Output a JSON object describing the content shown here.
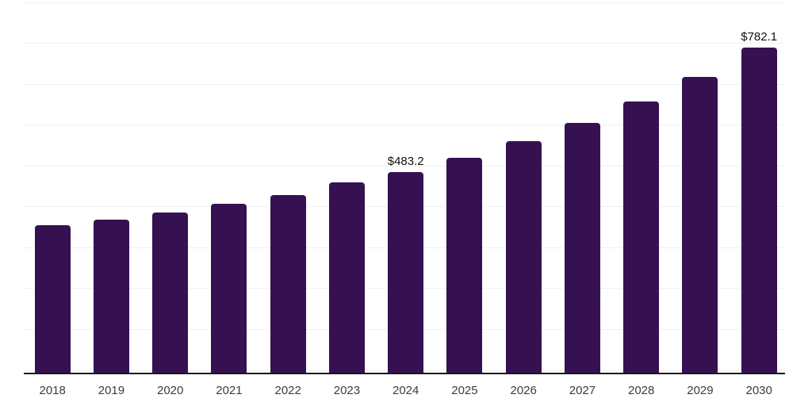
{
  "chart_data": {
    "type": "bar",
    "title": "",
    "xlabel": "",
    "ylabel": "",
    "value_prefix": "$",
    "categories": [
      "2018",
      "2019",
      "2020",
      "2021",
      "2022",
      "2023",
      "2024",
      "2025",
      "2026",
      "2027",
      "2028",
      "2029",
      "2030"
    ],
    "values": [
      355.0,
      369.0,
      386.2,
      407.1,
      428.9,
      458.6,
      483.2,
      517.3,
      557.4,
      601.7,
      652.5,
      711.4,
      782.1
    ],
    "data_labels": [
      {
        "category": "2024",
        "text": "$483.2"
      },
      {
        "category": "2030",
        "text": "$782.1"
      }
    ],
    "ylim": [
      0,
      900
    ],
    "grid": "horizontal",
    "gridline_count": 10,
    "legend": "none",
    "colors": {
      "bar": "#361151",
      "gridline": "#f0f0f0",
      "axis_line": "#1a1a1a",
      "tick_label": "#3c3c3c",
      "data_label": "#111111",
      "background": "#ffffff"
    }
  }
}
